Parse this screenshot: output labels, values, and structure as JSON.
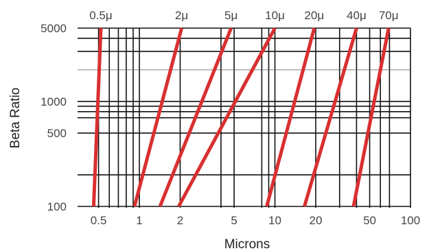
{
  "chart_data": {
    "type": "line",
    "title": "",
    "xlabel": "Microns",
    "ylabel": "Beta Ratio",
    "xscale": "log",
    "yscale": "log",
    "xlim": [
      0.35,
      100
    ],
    "ylim": [
      100,
      5000
    ],
    "grid": true,
    "x_ticks": [
      0.5,
      1,
      2,
      5,
      10,
      20,
      50,
      100
    ],
    "x_tick_labels": [
      "0.5",
      "1",
      "2",
      "5",
      "10",
      "20",
      "50",
      "100"
    ],
    "y_ticks": [
      100,
      500,
      1000,
      5000
    ],
    "y_tick_labels": [
      "100",
      "500",
      "1000",
      "5000"
    ],
    "x_gridlines": [
      0.5,
      0.6,
      0.7,
      0.8,
      0.9,
      1,
      2,
      4,
      5,
      8,
      9,
      10,
      20,
      30,
      40,
      50,
      60,
      70,
      100
    ],
    "y_gridlines": [
      100,
      200,
      500,
      700,
      800,
      900,
      1000,
      2000,
      3000,
      4000,
      5000
    ],
    "line_color": "#d93030",
    "series": [
      {
        "name": "0.5μ",
        "x": [
          0.46,
          0.52
        ],
        "y": [
          100,
          5000
        ]
      },
      {
        "name": "2μ",
        "x": [
          0.92,
          2.05
        ],
        "y": [
          100,
          5000
        ]
      },
      {
        "name": "5μ",
        "x": [
          1.42,
          4.75
        ],
        "y": [
          100,
          5000
        ]
      },
      {
        "name": "10μ",
        "x": [
          1.95,
          10.0
        ],
        "y": [
          100,
          5000
        ]
      },
      {
        "name": "20μ",
        "x": [
          8.7,
          19.5
        ],
        "y": [
          100,
          5000
        ]
      },
      {
        "name": "40μ",
        "x": [
          16.5,
          40.0
        ],
        "y": [
          100,
          5000
        ]
      },
      {
        "name": "70μ",
        "x": [
          38.0,
          69.0
        ],
        "y": [
          100,
          5000
        ]
      }
    ]
  }
}
